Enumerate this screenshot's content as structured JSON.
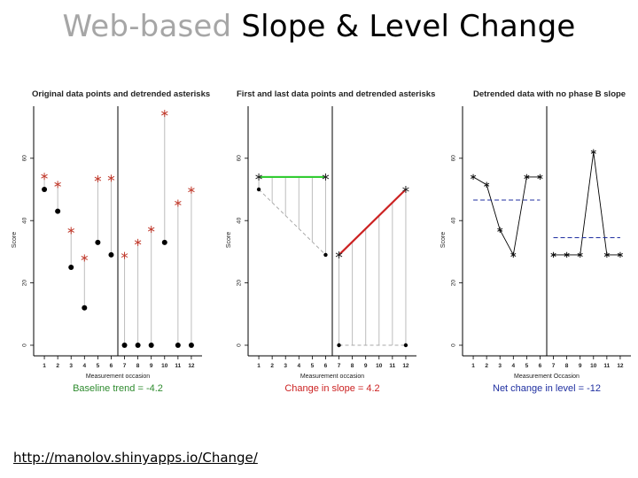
{
  "slide": {
    "title_grey": "Web-based",
    "title_black": "Slope & Level Change",
    "link": "http://manolov.shinyapps.io/Change/"
  },
  "colors": {
    "green": "#33cc33",
    "red": "#cc2222",
    "blue": "#1f2fa0",
    "asterisk": "#c0392b",
    "guide": "#bdbdbd"
  },
  "chart_data": [
    {
      "type": "scatter",
      "title": "Original data points and detrended asterisks",
      "xlabel": "Measurement occasion",
      "ylabel": "Score",
      "ylim": [
        0,
        75
      ],
      "yticks": [
        0,
        20,
        40,
        60
      ],
      "x": [
        1,
        2,
        3,
        4,
        5,
        6,
        7,
        8,
        9,
        10,
        11,
        12
      ],
      "series": [
        {
          "values": [
            50,
            43,
            25,
            12,
            33,
            29,
            0,
            0,
            0,
            33,
            0,
            0
          ]
        },
        {
          "values": [
            54.2,
            51.6,
            36.8,
            28.0,
            53.4,
            53.6,
            28.8,
            33.0,
            37.2,
            74.4,
            45.6,
            49.8
          ]
        }
      ],
      "phase_change_after": 6.5,
      "annotation": "Baseline trend = -4.2",
      "annotation_color": "#2e8b2e"
    },
    {
      "type": "scatter",
      "title": "First and last data points and detrended asterisks",
      "xlabel": "Measurement occasion",
      "ylabel": "Score",
      "ylim": [
        0,
        75
      ],
      "yticks": [
        0,
        20,
        40,
        60
      ],
      "x": [
        1,
        2,
        3,
        4,
        5,
        6,
        7,
        8,
        9,
        10,
        11,
        12
      ],
      "series": [
        {
          "values": [
            50,
            null,
            null,
            null,
            null,
            29,
            0,
            null,
            null,
            null,
            null,
            0
          ]
        },
        {
          "values": [
            54,
            54,
            54,
            54,
            54,
            54,
            29,
            33.2,
            37.4,
            41.6,
            45.8,
            50
          ]
        }
      ],
      "phase_change_after": 6.5,
      "annotation": "Change in slope = 4.2",
      "annotation_color": "#cc2222"
    },
    {
      "type": "line",
      "title": "Detrended data with no phase B slope",
      "xlabel": "Measurement Occasion",
      "ylabel": "Score",
      "ylim": [
        0,
        75
      ],
      "yticks": [
        0,
        20,
        40,
        60
      ],
      "x": [
        1,
        2,
        3,
        4,
        5,
        6,
        7,
        8,
        9,
        10,
        11,
        12
      ],
      "series": [
        {
          "values": [
            54,
            51.5,
            37,
            29,
            54,
            54,
            29,
            29,
            29,
            62,
            29,
            29
          ]
        }
      ],
      "means": [
        46.6,
        34.5
      ],
      "phase_change_after": 6.5,
      "annotation": "Net change in level = -12",
      "annotation_color": "#1f2fa0"
    }
  ]
}
